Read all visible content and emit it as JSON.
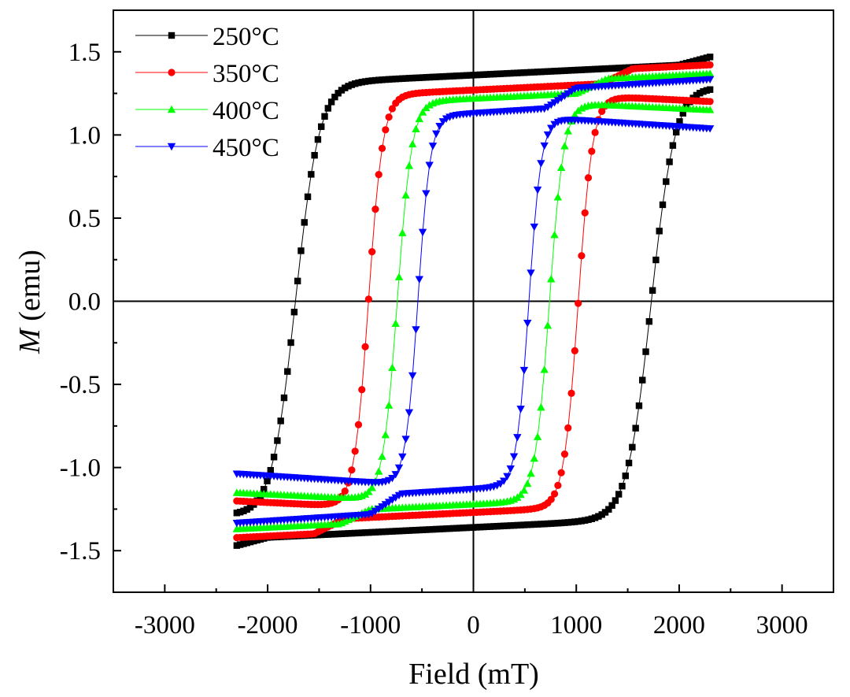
{
  "chart_data": {
    "type": "line",
    "title": "",
    "xlabel": "Field (mT)",
    "ylabel_symbol": "M",
    "ylabel_unit": "(emu)",
    "xlim": [
      -3500,
      3500
    ],
    "ylim": [
      -1.75,
      1.75
    ],
    "xticks": [
      -3000,
      -2000,
      -1000,
      0,
      1000,
      2000,
      3000
    ],
    "xtick_labels": [
      "-3000",
      "-2000",
      "-1000",
      "0",
      "1000",
      "2000",
      "3000"
    ],
    "yticks": [
      -1.5,
      -1.0,
      -0.5,
      0.0,
      0.5,
      1.0,
      1.5
    ],
    "ytick_labels": [
      "-1.5",
      "-1.0",
      "-0.5",
      "0.0",
      "0.5",
      "1.0",
      "1.5"
    ],
    "legend_position": "top-left",
    "series": [
      {
        "name": "250°C",
        "color": "#000000",
        "marker": "square",
        "coercivity": 1730,
        "saturation": 1.46,
        "retained": 1.36,
        "low_field_slope": 0.03,
        "shoulder_field": 2000,
        "transition_width": 230
      },
      {
        "name": "350°C",
        "color": "#ff0000",
        "marker": "circle",
        "coercivity": 1020,
        "saturation": 1.39,
        "retained": 1.27,
        "low_field_slope": 0.03,
        "shoulder_field": 1250,
        "transition_width": 140
      },
      {
        "name": "400°C",
        "color": "#00ff00",
        "marker": "triangle-up",
        "coercivity": 740,
        "saturation": 1.33,
        "retained": 1.22,
        "low_field_slope": 0.03,
        "shoulder_field": 1000,
        "transition_width": 140
      },
      {
        "name": "450°C",
        "color": "#0000ff",
        "marker": "triangle-down",
        "coercivity": 540,
        "saturation": 1.27,
        "retained": 1.13,
        "low_field_slope": 0.04,
        "shoulder_field": 700,
        "transition_width": 120
      }
    ],
    "field_range": [
      -2300,
      2300
    ]
  }
}
